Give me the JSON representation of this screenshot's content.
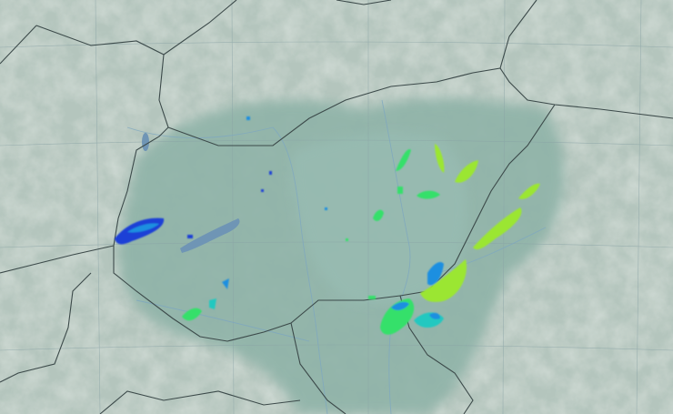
{
  "map": {
    "type": "weather-radar",
    "colors": {
      "background_terrain": "#b9c9c0",
      "mountain_highlight": "#d9e0da",
      "lowland": "#8fb3a8",
      "plain": "#9cbdb3",
      "lake": "#6f95b5",
      "border": "#3c4a4a",
      "grid": "#8aa3a6",
      "river": "#7ea7c0"
    },
    "radar_intensity_colors": [
      "#1e3fd6",
      "#1f8fe0",
      "#22c8c0",
      "#36e06a",
      "#9be632"
    ]
  }
}
